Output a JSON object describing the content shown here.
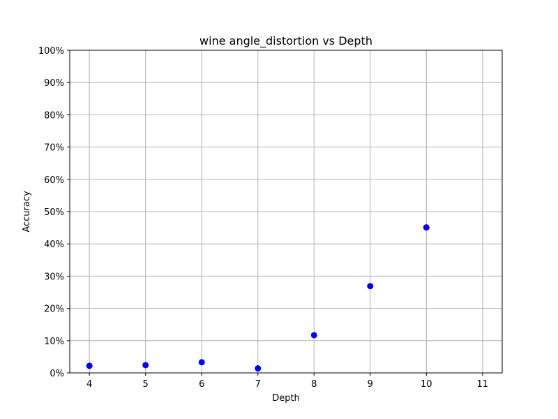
{
  "chart_data": {
    "type": "scatter",
    "title": "wine angle_distortion vs Depth",
    "xlabel": "Depth",
    "ylabel": "Accuracy",
    "x_ticks": [
      4,
      5,
      6,
      7,
      8,
      9,
      10,
      11
    ],
    "y_ticks": [
      0,
      10,
      20,
      30,
      40,
      50,
      60,
      70,
      80,
      90,
      100
    ],
    "y_tick_labels": [
      "0%",
      "10%",
      "20%",
      "30%",
      "40%",
      "50%",
      "60%",
      "70%",
      "80%",
      "90%",
      "100%"
    ],
    "xlim": [
      3.65,
      11.35
    ],
    "ylim": [
      0,
      100
    ],
    "y_unit": "percent",
    "grid": true,
    "marker_color": "#0000ff",
    "series": [
      {
        "x": [
          4,
          5,
          6,
          7,
          8,
          9,
          10
        ],
        "y": [
          2.2,
          2.4,
          3.3,
          1.4,
          11.7,
          26.9,
          45.1
        ]
      }
    ]
  }
}
